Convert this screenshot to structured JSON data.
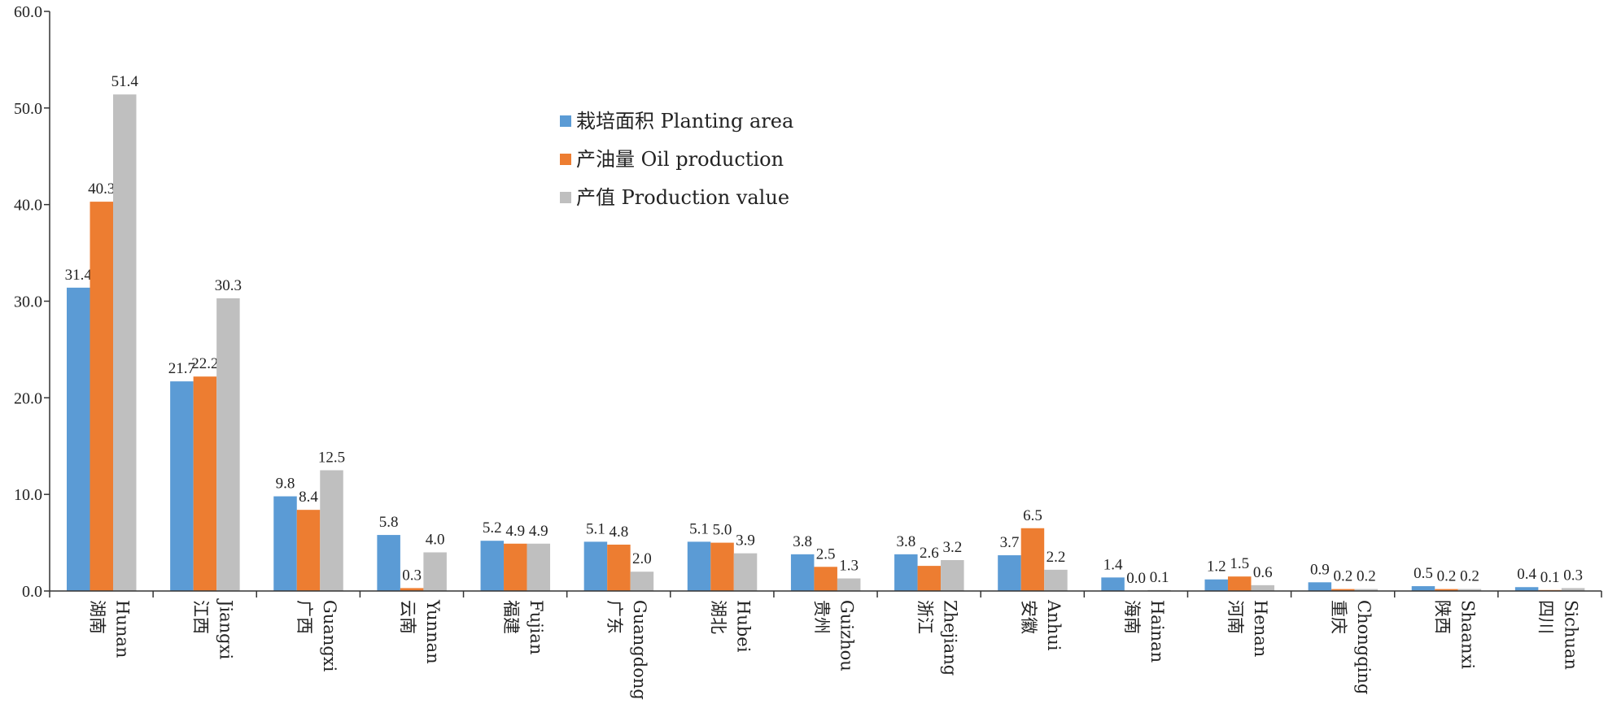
{
  "chart_data": {
    "type": "bar",
    "title": "",
    "xlabel": "",
    "ylabel": "",
    "ylim": [
      0,
      60
    ],
    "yticks": [
      "0.0",
      "10.0",
      "20.0",
      "30.0",
      "40.0",
      "50.0",
      "60.0"
    ],
    "legend_position": "top-center",
    "grid": false,
    "categories": [
      {
        "cn": "湖南",
        "en": "Hunan"
      },
      {
        "cn": "江西",
        "en": "Jiangxi"
      },
      {
        "cn": "广西",
        "en": "Guangxi"
      },
      {
        "cn": "云南",
        "en": "Yunnan"
      },
      {
        "cn": "福建",
        "en": "Fujian"
      },
      {
        "cn": "广东",
        "en": "Guangdong"
      },
      {
        "cn": "湖北",
        "en": "Hubei"
      },
      {
        "cn": "贵州",
        "en": "Guizhou"
      },
      {
        "cn": "浙江",
        "en": "Zhejiang"
      },
      {
        "cn": "安徽",
        "en": "Anhui"
      },
      {
        "cn": "海南",
        "en": "Hainan"
      },
      {
        "cn": "河南",
        "en": "Henan"
      },
      {
        "cn": "重庆",
        "en": "Chongqing"
      },
      {
        "cn": "陕西",
        "en": "Shaanxi"
      },
      {
        "cn": "四川",
        "en": "Sichuan"
      }
    ],
    "series": [
      {
        "name": "栽培面积 Planting area",
        "color": "#5b9bd5",
        "values": [
          31.4,
          21.7,
          9.8,
          5.8,
          5.2,
          5.1,
          5.1,
          3.8,
          3.8,
          3.7,
          1.4,
          1.2,
          0.9,
          0.5,
          0.4
        ]
      },
      {
        "name": "产油量 Oil production",
        "color": "#ed7d31",
        "values": [
          40.3,
          22.2,
          8.4,
          0.3,
          4.9,
          4.8,
          5.0,
          2.5,
          2.6,
          6.5,
          0.0,
          1.5,
          0.2,
          0.2,
          0.1
        ]
      },
      {
        "name": "产值 Production value",
        "color": "#bfbfbf",
        "values": [
          51.4,
          30.3,
          12.5,
          4.0,
          4.9,
          2.0,
          3.9,
          1.3,
          3.2,
          2.2,
          0.1,
          0.6,
          0.2,
          0.2,
          0.3
        ]
      }
    ]
  }
}
